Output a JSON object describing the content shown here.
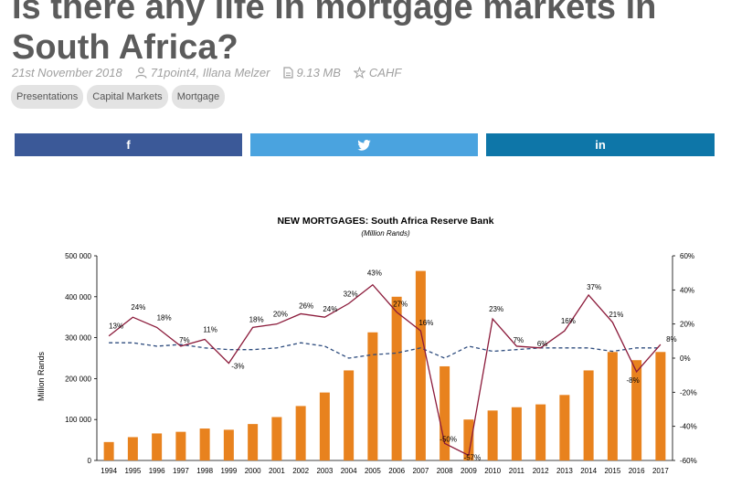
{
  "article": {
    "title_line1": "Is there any life in mortgage markets in",
    "title_line2": "South Africa?",
    "date": "21st November 2018",
    "authors": "71point4, Illana Melzer",
    "file_size": "9.13 MB",
    "publisher": "CAHF",
    "tags": [
      "Presentations",
      "Capital Markets",
      "Mortgage"
    ]
  },
  "share": {
    "facebook_label": "f",
    "twitter_label": "twitter-bird",
    "linkedin_label": "in"
  },
  "colors": {
    "facebook": "#3b5998",
    "twitter": "#4aa3df",
    "linkedin": "#0e76a8",
    "bar": "#e8821e",
    "growth_line": "#8b1a3a",
    "avg_line": "#2e4c7e"
  },
  "chart_data": {
    "type": "bar",
    "title": "NEW MORTGAGES: South Africa Reserve Bank",
    "subtitle": "(Million Rands)",
    "ylabel": "Million Rands",
    "ylim": [
      0,
      500000
    ],
    "y_ticks": [
      "0",
      "100 000",
      "200 000",
      "300 000",
      "400 000",
      "500 000"
    ],
    "y2lim": [
      -60,
      60
    ],
    "y2_ticks": [
      "-60%",
      "-40%",
      "-20%",
      "0%",
      "20%",
      "40%",
      "60%"
    ],
    "categories": [
      "1994",
      "1995",
      "1996",
      "1997",
      "1998",
      "1999",
      "2000",
      "2001",
      "2002",
      "2003",
      "2004",
      "2005",
      "2006",
      "2007",
      "2008",
      "2009",
      "2010",
      "2011",
      "2012",
      "2013",
      "2014",
      "2015",
      "2016",
      "2017"
    ],
    "bars": {
      "values": [
        45000,
        57000,
        66000,
        70000,
        78000,
        75000,
        89000,
        106000,
        133000,
        166000,
        220000,
        313000,
        400000,
        463000,
        230000,
        100000,
        122000,
        130000,
        137000,
        160000,
        220000,
        265000,
        245000,
        265000
      ]
    },
    "growth": {
      "values": [
        13,
        24,
        18,
        7,
        11,
        -3,
        18,
        20,
        26,
        24,
        32,
        43,
        27,
        16,
        -50,
        -57,
        23,
        7,
        6,
        16,
        37,
        21,
        -8,
        8
      ],
      "labels": [
        "13%",
        "24%",
        "18%",
        "7%",
        "11%",
        "-3%",
        "18%",
        "20%",
        "26%",
        "24%",
        "32%",
        "43%",
        "27%",
        "16%",
        "-50%",
        "-57%",
        "23%",
        "7%",
        "6%",
        "16%",
        "37%",
        "21%",
        "-8%",
        "8%"
      ]
    },
    "average": {
      "values": [
        9,
        9,
        7,
        8,
        6,
        5,
        5,
        6,
        9,
        7,
        0,
        2,
        3,
        6,
        0,
        7,
        4,
        5,
        6,
        6,
        6,
        4,
        6,
        6
      ]
    }
  }
}
